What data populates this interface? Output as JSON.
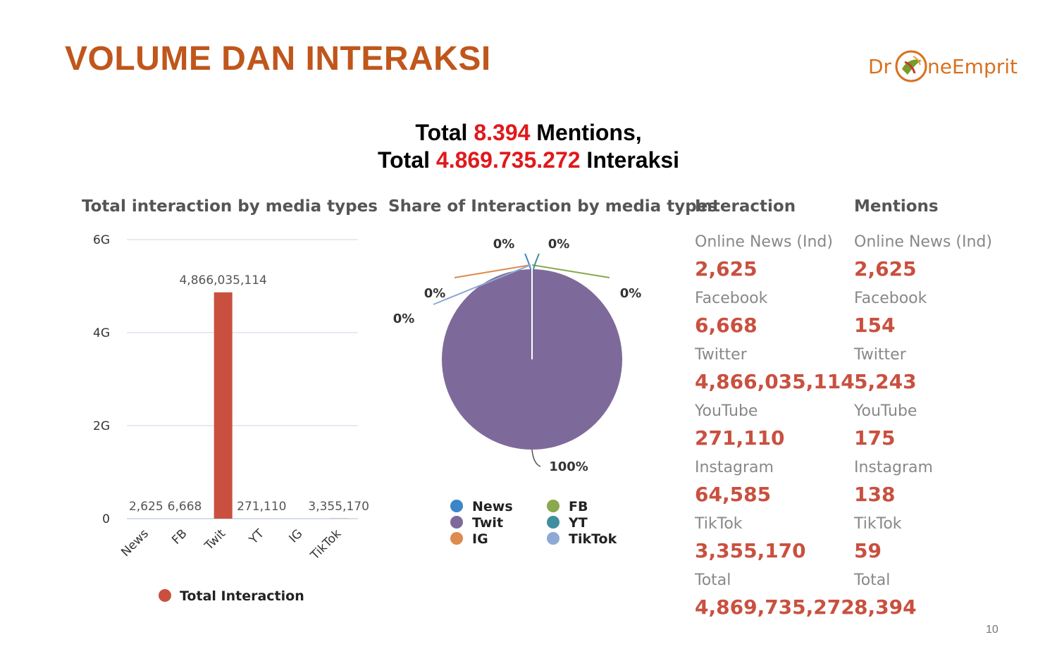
{
  "slide": {
    "title": "VOLUME DAN INTERAKSI",
    "page_number": "10",
    "logo": {
      "text_left": "Dr",
      "text_right": "neEmprit",
      "icon": "drone-logo-icon"
    }
  },
  "summary": {
    "line1_prefix": "Total",
    "line1_value": "8.394",
    "line1_suffix": "Mentions,",
    "line2_prefix": "Total",
    "line2_value": "4.869.735.272",
    "line2_suffix": "Interaksi",
    "highlight_color": "#e0191b"
  },
  "chart_data": [
    {
      "type": "bar",
      "title": "Total interaction by media types",
      "categories": [
        "News",
        "FB",
        "Twit",
        "YT",
        "IG",
        "TikTok"
      ],
      "series": [
        {
          "name": "Total Interaction",
          "values": [
            2625,
            6668,
            4866035114,
            271110,
            64585,
            3355170
          ],
          "color": "#c9503f"
        }
      ],
      "data_labels": [
        "2,625",
        "6,668",
        "4,866,035,114",
        "271,110",
        "",
        "3,355,170"
      ],
      "yticks": [
        "0",
        "2G",
        "4G",
        "6G"
      ],
      "ylim": [
        0,
        6000000000
      ],
      "grid": true,
      "legend": "bottom"
    },
    {
      "type": "pie",
      "title": "Share of Interaction by media types",
      "labels": [
        "News",
        "FB",
        "Twit",
        "YT",
        "IG",
        "TikTok"
      ],
      "values": [
        2625,
        6668,
        4866035114,
        271110,
        64585,
        3355170
      ],
      "slice_labels": [
        "0%",
        "0%",
        "100%",
        "0%",
        "0%",
        "0%"
      ],
      "colors": [
        "#3b86c8",
        "#8aa84e",
        "#7e6a9a",
        "#3f8f9f",
        "#dd8a4e",
        "#8ea9d4"
      ],
      "legend": "bottom"
    }
  ],
  "interaction": {
    "title": "Interaction",
    "items": [
      {
        "label": "Online News (Ind)",
        "value": "2,625"
      },
      {
        "label": "Facebook",
        "value": "6,668"
      },
      {
        "label": "Twitter",
        "value": "4,866,035,114"
      },
      {
        "label": "YouTube",
        "value": "271,110"
      },
      {
        "label": "Instagram",
        "value": "64,585"
      },
      {
        "label": "TikTok",
        "value": "3,355,170"
      },
      {
        "label": "Total",
        "value": "4,869,735,272"
      }
    ]
  },
  "mentions": {
    "title": "Mentions",
    "items": [
      {
        "label": "Online News (Ind)",
        "value": "2,625"
      },
      {
        "label": "Facebook",
        "value": "154"
      },
      {
        "label": "Twitter",
        "value": "5,243"
      },
      {
        "label": "YouTube",
        "value": "175"
      },
      {
        "label": "Instagram",
        "value": "138"
      },
      {
        "label": "TikTok",
        "value": "59"
      },
      {
        "label": "Total",
        "value": "8,394"
      }
    ]
  }
}
